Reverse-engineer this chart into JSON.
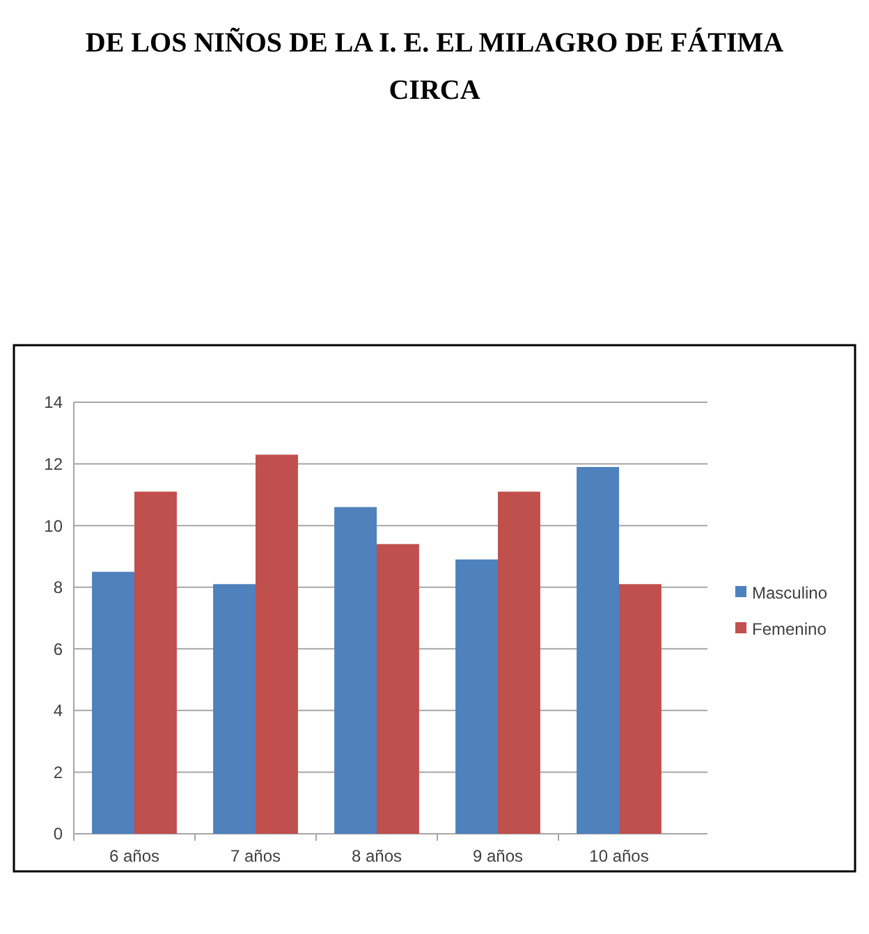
{
  "chart_data": {
    "type": "bar",
    "title": "DE LOS NIÑOS DE LA I. E. EL MILAGRO DE FÁTIMA CIRCA",
    "categories": [
      "6 años",
      "7 años",
      "8 años",
      "9 años",
      "10 años"
    ],
    "series": [
      {
        "name": "Masculino",
        "color": "#4f81bd",
        "values": [
          8.5,
          8.1,
          10.6,
          8.9,
          11.9
        ]
      },
      {
        "name": "Femenino",
        "color": "#c0504d",
        "values": [
          11.1,
          12.3,
          9.4,
          11.1,
          8.1
        ]
      }
    ],
    "ylim": [
      0,
      14
    ],
    "yticks": [
      0,
      2,
      4,
      6,
      8,
      10,
      12,
      14
    ],
    "grid": "y",
    "legend": "right"
  }
}
